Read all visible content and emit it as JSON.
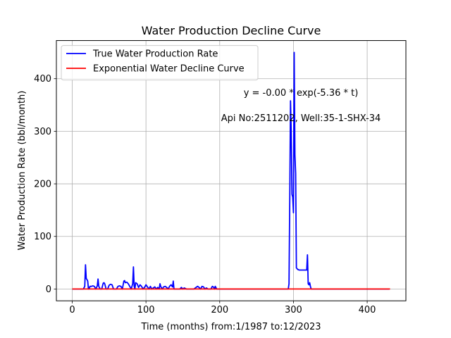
{
  "chart_data": {
    "type": "line",
    "title": "Water Production Decline Curve",
    "xlabel": "Time (months) from:1/1987 to:12/2023",
    "ylabel": "Water Production Rate (bbl/month)",
    "xlim": [
      -21.5,
      452.5
    ],
    "ylim": [
      -22.5,
      472.5
    ],
    "x_ticks": [
      0,
      100,
      200,
      300,
      400
    ],
    "y_ticks": [
      0,
      100,
      200,
      300,
      400
    ],
    "grid": true,
    "legend_position": "top-left",
    "annotations": [
      {
        "text": "y = -0.00 * exp(-5.36 * t)",
        "x": 315,
        "y": 368
      },
      {
        "text": "Api No:2511202, Well:35-1-SHX-34",
        "x": 310,
        "y": 320
      }
    ],
    "series": [
      {
        "name": "True Water Production Rate",
        "color": "#0000ff",
        "x": [
          0,
          10,
          15,
          17,
          18,
          19,
          20,
          21,
          22,
          23,
          24,
          26,
          28,
          30,
          32,
          34,
          35,
          36,
          38,
          40,
          42,
          43,
          44,
          46,
          48,
          50,
          52,
          54,
          56,
          58,
          60,
          62,
          64,
          66,
          68,
          70,
          71,
          72,
          74,
          76,
          78,
          80,
          82,
          83,
          84,
          85,
          86,
          88,
          90,
          92,
          94,
          96,
          98,
          100,
          102,
          104,
          106,
          108,
          110,
          112,
          114,
          116,
          118,
          119,
          120,
          122,
          124,
          126,
          128,
          130,
          132,
          134,
          136,
          137,
          138,
          140,
          142,
          144,
          146,
          148,
          150,
          152,
          155,
          160,
          165,
          170,
          172,
          174,
          176,
          178,
          180,
          182,
          184,
          186,
          188,
          190,
          192,
          193,
          194,
          196,
          198,
          200,
          250,
          290,
          293,
          294,
          295,
          296,
          297,
          298,
          299,
          300,
          301,
          302,
          303,
          304,
          306,
          308,
          310,
          312,
          314,
          316,
          318,
          319,
          320,
          321,
          322,
          323,
          324,
          325,
          326,
          330,
          400,
          430
        ],
        "values": [
          0,
          0,
          0,
          5,
          46,
          20,
          18,
          15,
          0,
          0,
          5,
          5,
          6,
          5,
          0,
          6,
          19,
          5,
          0,
          0,
          11,
          12,
          10,
          0,
          0,
          7,
          9,
          8,
          0,
          0,
          0,
          5,
          6,
          5,
          0,
          15,
          16,
          12,
          13,
          10,
          5,
          0,
          10,
          42,
          5,
          0,
          12,
          10,
          3,
          8,
          5,
          0,
          3,
          8,
          4,
          0,
          5,
          0,
          2,
          4,
          0,
          3,
          0,
          10,
          5,
          0,
          4,
          5,
          3,
          0,
          5,
          8,
          4,
          15,
          0,
          0,
          0,
          0,
          0,
          3,
          0,
          2,
          0,
          0,
          0,
          5,
          3,
          0,
          5,
          4,
          0,
          2,
          0,
          0,
          0,
          5,
          3,
          0,
          5,
          0,
          0,
          0,
          0,
          0,
          0,
          10,
          170,
          358,
          300,
          180,
          175,
          145,
          450,
          255,
          220,
          40,
          37,
          36,
          36,
          36,
          36,
          36,
          36,
          65,
          10,
          8,
          12,
          5,
          0,
          0,
          0,
          0,
          0,
          0
        ]
      },
      {
        "name": "Exponential Water Decline Curve",
        "color": "#ff0000",
        "x": [
          0,
          431
        ],
        "values": [
          0,
          0
        ]
      }
    ]
  }
}
